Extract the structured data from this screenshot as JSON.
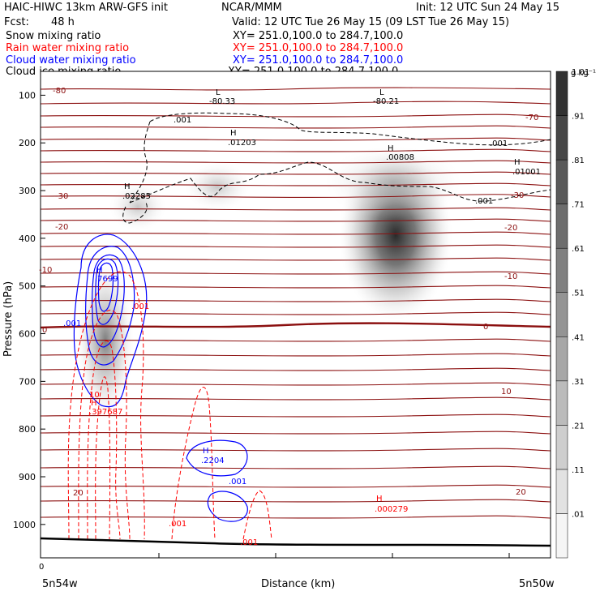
{
  "header": {
    "left_title": "HAIC-HIWC 13km ARW-GFS init",
    "center_title": "NCAR/MMM",
    "init": "Init: 12 UTC Sun 24 May 15",
    "fcst_label": "Fcst:",
    "fcst_value": "48 h",
    "valid": "Valid: 12 UTC Tue 26 May 15 (09 LST Tue 26 May 15)"
  },
  "legend": [
    {
      "label": "Snow mixing ratio",
      "xy": "XY= 251.0,100.0 to 284.7,100.0",
      "color": "#000000"
    },
    {
      "label": "Rain water mixing ratio",
      "xy": "XY= 251.0,100.0 to 284.7,100.0",
      "color": "#ff0000"
    },
    {
      "label": "Cloud water mixing ratio",
      "xy": "XY= 251.0,100.0 to 284.7,100.0",
      "color": "#0000ff"
    },
    {
      "label": "Cloud ice mixing ratio",
      "xy": "XY= 251.0,100.0 to 284.7,100.0",
      "color": "#000000"
    }
  ],
  "chart_data": {
    "type": "heatmap",
    "xlabel": "Distance (km)",
    "ylabel": "Pressure (hPa)",
    "x_tick_labels": [
      "0"
    ],
    "x_end_labels": [
      "5n54w",
      "5n50w"
    ],
    "y_ticks": [
      100,
      200,
      300,
      400,
      500,
      600,
      700,
      800,
      900,
      1000
    ],
    "ylim": [
      1070,
      50
    ],
    "colorbar": {
      "unit": "g kg⁻¹",
      "labels": [
        ".01",
        ".11",
        ".21",
        ".31",
        ".41",
        ".51",
        ".61",
        ".71",
        ".81",
        ".91",
        "1.01"
      ]
    },
    "temperature_contours": [
      {
        "label": "-80",
        "p": 92
      },
      {
        "label": "-70",
        "p": 143
      },
      {
        "label": "-30",
        "p": 305
      },
      {
        "label": "-20",
        "p": 372
      },
      {
        "label": "-10",
        "p": 460
      },
      {
        "label": "0",
        "p": 565
      },
      {
        "label": "10",
        "p": 705
      },
      {
        "label": "20",
        "p": 888
      }
    ],
    "extrema_labels": [
      {
        "type": "L",
        "value": "-80.33",
        "color": "#000000"
      },
      {
        "type": "L",
        "value": "-80.21",
        "color": "#000000"
      },
      {
        "type": "H",
        "value": ".01203",
        "color": "#000000"
      },
      {
        "type": "H",
        "value": ".00808",
        "color": "#000000"
      },
      {
        "type": "H",
        "value": ".01001",
        "color": "#000000"
      },
      {
        "type": "H",
        "value": ".02285",
        "color": "#000000"
      },
      {
        "type": "H",
        "value": ".7699",
        "color": "#0000ff"
      },
      {
        "type": "H",
        "value": ".397687",
        "color": "#ff0000"
      },
      {
        "type": "H",
        "value": ".2204",
        "color": "#0000ff"
      },
      {
        "type": "H",
        "value": ".000279",
        "color": "#ff0000"
      }
    ],
    "contour_labels": [
      {
        "text": ".001",
        "color": "#000000"
      },
      {
        "text": ".001",
        "color": "#000000"
      },
      {
        "text": ".001",
        "color": "#000000"
      },
      {
        "text": ".001",
        "color": "#ff0000"
      },
      {
        "text": ".001",
        "color": "#0000ff"
      },
      {
        "text": ".001",
        "color": "#0000ff"
      },
      {
        "text": ".001",
        "color": "#ff0000"
      },
      {
        "text": ".001",
        "color": "#ff0000"
      },
      {
        "text": "10",
        "color": "#ff0000"
      }
    ]
  }
}
